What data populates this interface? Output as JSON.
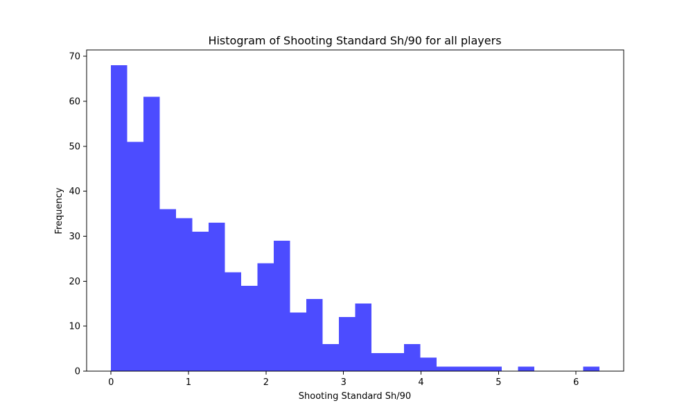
{
  "chart_data": {
    "type": "bar",
    "title": "Histogram of Shooting Standard Sh/90 for all players",
    "xlabel": "Shooting Standard Sh/90",
    "ylabel": "Frequency",
    "xlim": [
      -0.315,
      6.615
    ],
    "ylim": [
      0,
      71.4
    ],
    "xticks": [
      0,
      1,
      2,
      3,
      4,
      5,
      6
    ],
    "yticks": [
      0,
      10,
      20,
      30,
      40,
      50,
      60,
      70
    ],
    "bin_start": 0,
    "bin_width": 0.21,
    "values": [
      68,
      51,
      61,
      36,
      34,
      31,
      33,
      22,
      19,
      24,
      29,
      13,
      16,
      6,
      12,
      15,
      4,
      4,
      6,
      3,
      1,
      1,
      1,
      1,
      0,
      1,
      0,
      0,
      0,
      1
    ],
    "bar_color": "#4c4cff",
    "grid": false,
    "legend": "none"
  }
}
